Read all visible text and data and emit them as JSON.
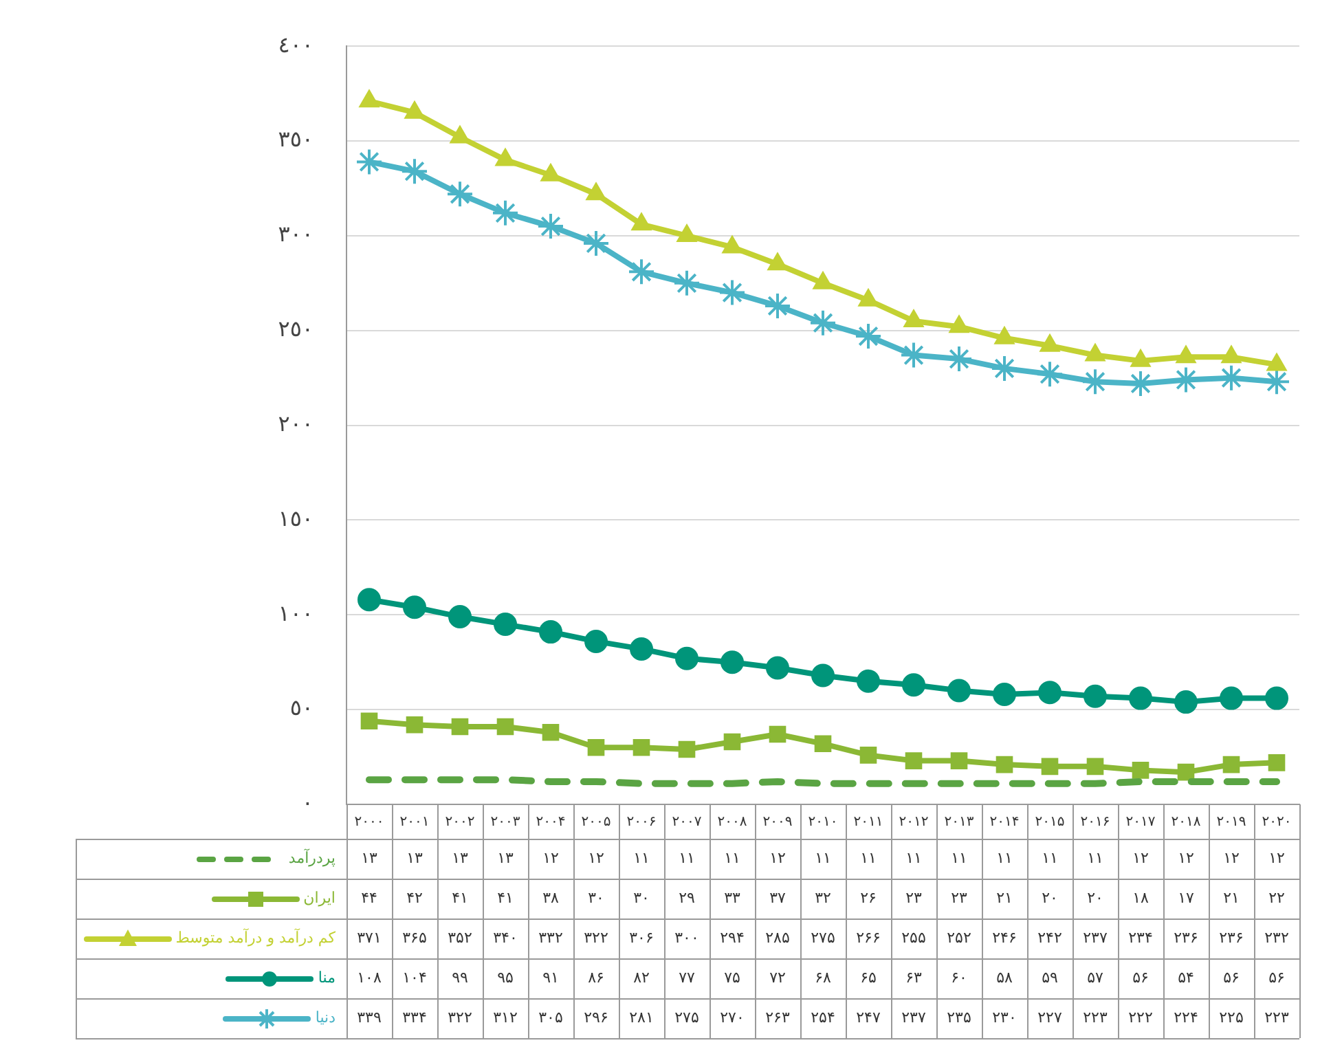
{
  "chart_data": {
    "type": "line",
    "categories": [
      "۲۰۰۰",
      "۲۰۰۱",
      "۲۰۰۲",
      "۲۰۰۳",
      "۲۰۰۴",
      "۲۰۰۵",
      "۲۰۰۶",
      "۲۰۰۷",
      "۲۰۰۸",
      "۲۰۰۹",
      "۲۰۱۰",
      "۲۰۱۱",
      "۲۰۱۲",
      "۲۰۱۳",
      "۲۰۱۴",
      "۲۰۱۵",
      "۲۰۱۶",
      "۲۰۱۷",
      "۲۰۱۸",
      "۲۰۱۹",
      "۲۰۲۰"
    ],
    "series": [
      {
        "name": "پردرآمد",
        "color": "#5aa443",
        "marker": "none",
        "line_style": "dashed",
        "values": [
          13,
          13,
          13,
          13,
          12,
          12,
          11,
          11,
          11,
          12,
          11,
          11,
          11,
          11,
          11,
          11,
          11,
          12,
          12,
          12,
          12
        ],
        "value_labels": [
          "۱۳",
          "۱۳",
          "۱۳",
          "۱۳",
          "۱۲",
          "۱۲",
          "۱۱",
          "۱۱",
          "۱۱",
          "۱۲",
          "۱۱",
          "۱۱",
          "۱۱",
          "۱۱",
          "۱۱",
          "۱۱",
          "۱۱",
          "۱۲",
          "۱۲",
          "۱۲",
          "۱۲"
        ]
      },
      {
        "name": "ایران",
        "color": "#8bb835",
        "marker": "square",
        "line_style": "solid",
        "values": [
          44,
          42,
          41,
          41,
          38,
          30,
          30,
          29,
          33,
          37,
          32,
          26,
          23,
          23,
          21,
          20,
          20,
          18,
          17,
          21,
          22
        ],
        "value_labels": [
          "۴۴",
          "۴۲",
          "۴۱",
          "۴۱",
          "۳۸",
          "۳۰",
          "۳۰",
          "۲۹",
          "۳۳",
          "۳۷",
          "۳۲",
          "۲۶",
          "۲۳",
          "۲۳",
          "۲۱",
          "۲۰",
          "۲۰",
          "۱۸",
          "۱۷",
          "۲۱",
          "۲۲"
        ]
      },
      {
        "name": "کم درآمد و درآمد متوسط",
        "color": "#c3d133",
        "marker": "triangle",
        "line_style": "solid",
        "values": [
          371,
          365,
          352,
          340,
          332,
          322,
          306,
          300,
          294,
          285,
          275,
          266,
          255,
          252,
          246,
          242,
          237,
          234,
          236,
          236,
          232
        ],
        "value_labels": [
          "۳۷۱",
          "۳۶۵",
          "۳۵۲",
          "۳۴۰",
          "۳۳۲",
          "۳۲۲",
          "۳۰۶",
          "۳۰۰",
          "۲۹۴",
          "۲۸۵",
          "۲۷۵",
          "۲۶۶",
          "۲۵۵",
          "۲۵۲",
          "۲۴۶",
          "۲۴۲",
          "۲۳۷",
          "۲۳۴",
          "۲۳۶",
          "۲۳۶",
          "۲۳۲"
        ]
      },
      {
        "name": "منا",
        "color": "#00957a",
        "marker": "circle",
        "line_style": "solid",
        "values": [
          108,
          104,
          99,
          95,
          91,
          86,
          82,
          77,
          75,
          72,
          68,
          65,
          63,
          60,
          58,
          59,
          57,
          56,
          54,
          56,
          56
        ],
        "value_labels": [
          "۱۰۸",
          "۱۰۴",
          "۹۹",
          "۹۵",
          "۹۱",
          "۸۶",
          "۸۲",
          "۷۷",
          "۷۵",
          "۷۲",
          "۶۸",
          "۶۵",
          "۶۳",
          "۶۰",
          "۵۸",
          "۵۹",
          "۵۷",
          "۵۶",
          "۵۴",
          "۵۶",
          "۵۶"
        ]
      },
      {
        "name": "دنیا",
        "color": "#4bb4c7",
        "marker": "cross",
        "line_style": "solid",
        "values": [
          339,
          334,
          322,
          312,
          305,
          296,
          281,
          275,
          270,
          263,
          254,
          247,
          237,
          235,
          230,
          227,
          223,
          222,
          224,
          225,
          223
        ],
        "value_labels": [
          "۳۳۹",
          "۳۳۴",
          "۳۲۲",
          "۳۱۲",
          "۳۰۵",
          "۲۹۶",
          "۲۸۱",
          "۲۷۵",
          "۲۷۰",
          "۲۶۳",
          "۲۵۴",
          "۲۴۷",
          "۲۳۷",
          "۲۳۵",
          "۲۳۰",
          "۲۲۷",
          "۲۲۳",
          "۲۲۲",
          "۲۲۴",
          "۲۲۵",
          "۲۲۳"
        ]
      }
    ],
    "ylim": [
      0,
      400
    ],
    "yticks": [
      {
        "value": 0,
        "label": "٠"
      },
      {
        "value": 50,
        "label": "٥٠"
      },
      {
        "value": 100,
        "label": "١٠٠"
      },
      {
        "value": 150,
        "label": "١٥٠"
      },
      {
        "value": 200,
        "label": "٢٠٠"
      },
      {
        "value": 250,
        "label": "٢٥٠"
      },
      {
        "value": 300,
        "label": "٣٠٠"
      },
      {
        "value": 350,
        "label": "٣٥٠"
      },
      {
        "value": 400,
        "label": "٤٠٠"
      }
    ],
    "grid": "y",
    "legend": "bottom"
  }
}
